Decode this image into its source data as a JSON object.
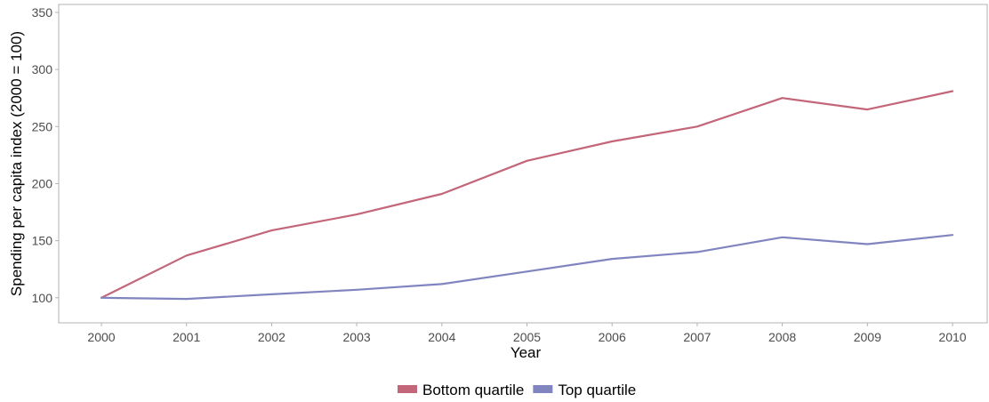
{
  "chart_data": {
    "type": "line",
    "title": "",
    "xlabel": "Year",
    "ylabel": "Spending per capita index (2000 = 100)",
    "x": [
      2000,
      2001,
      2002,
      2003,
      2004,
      2005,
      2006,
      2007,
      2008,
      2009,
      2010
    ],
    "x_tick_labels": [
      "2000",
      "2001",
      "2002",
      "2003",
      "2004",
      "2005",
      "2006",
      "2007",
      "2008",
      "2009",
      "2010"
    ],
    "ylim": [
      78,
      357
    ],
    "y_ticks": [
      100,
      150,
      200,
      250,
      300,
      350
    ],
    "y_tick_labels": [
      "100",
      "150",
      "200",
      "250",
      "300",
      "350"
    ],
    "grid": false,
    "legend_position": "bottom",
    "series": [
      {
        "name": "Bottom quartile",
        "color": "#c4667a",
        "values": [
          100,
          137,
          159,
          173,
          191,
          220,
          237,
          250,
          275,
          265,
          281
        ]
      },
      {
        "name": "Top quartile",
        "color": "#8085c0",
        "values": [
          100,
          99,
          103,
          107,
          112,
          123,
          134,
          140,
          153,
          147,
          155
        ]
      }
    ]
  }
}
